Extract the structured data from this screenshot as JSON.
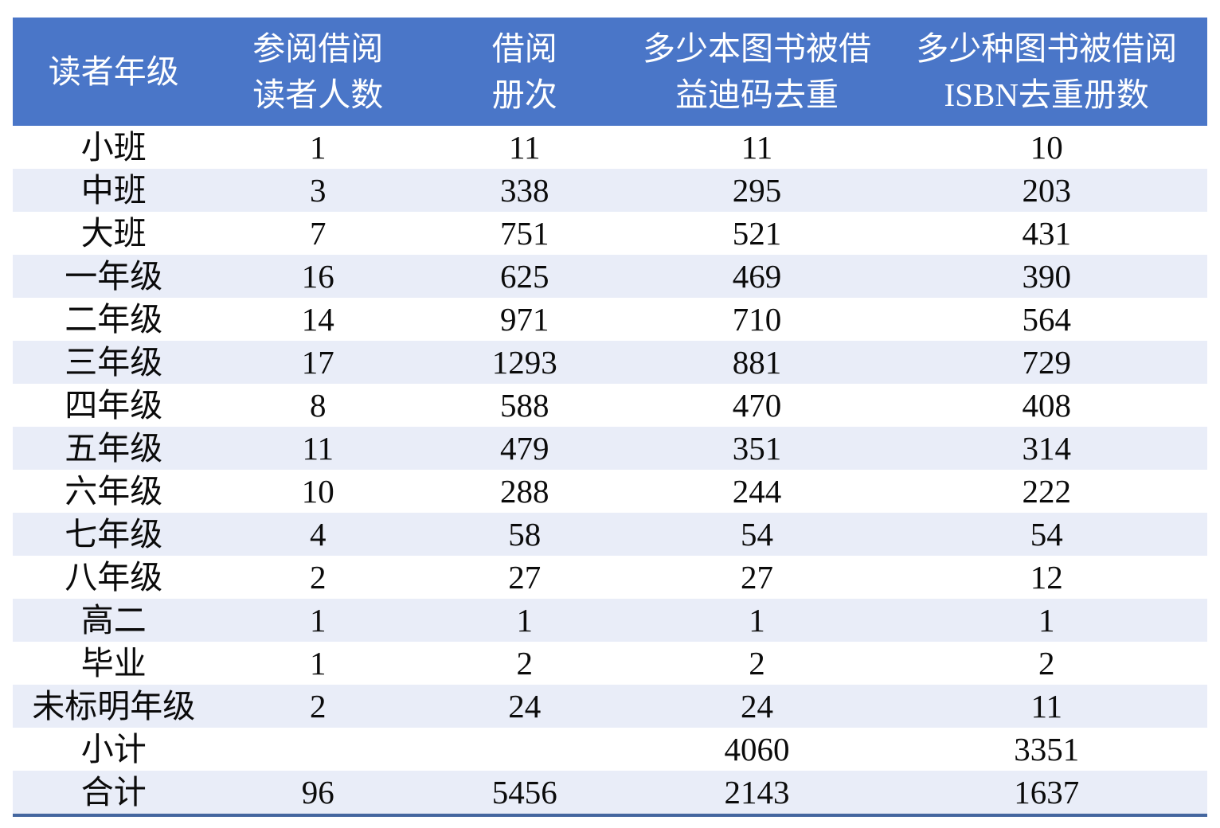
{
  "table": {
    "columns": [
      {
        "name": "reader-grade",
        "label_lines": [
          "读者年级"
        ]
      },
      {
        "name": "reader-count",
        "label_lines": [
          "参阅借阅",
          "读者人数"
        ]
      },
      {
        "name": "loan-volume-times",
        "label_lines": [
          "借阅",
          "册次"
        ]
      },
      {
        "name": "books-borrowed-barcode",
        "label_lines": [
          "多少本图书被借",
          "益迪码去重"
        ]
      },
      {
        "name": "titles-borrowed-isbn",
        "label_lines": [
          "多少种图书被借阅",
          "ISBN去重册数"
        ]
      }
    ],
    "rows": [
      {
        "grade": "小班",
        "values": [
          "1",
          "11",
          "11",
          "10"
        ]
      },
      {
        "grade": "中班",
        "values": [
          "3",
          "338",
          "295",
          "203"
        ]
      },
      {
        "grade": "大班",
        "values": [
          "7",
          "751",
          "521",
          "431"
        ]
      },
      {
        "grade": "一年级",
        "values": [
          "16",
          "625",
          "469",
          "390"
        ]
      },
      {
        "grade": "二年级",
        "values": [
          "14",
          "971",
          "710",
          "564"
        ]
      },
      {
        "grade": "三年级",
        "values": [
          "17",
          "1293",
          "881",
          "729"
        ]
      },
      {
        "grade": "四年级",
        "values": [
          "8",
          "588",
          "470",
          "408"
        ]
      },
      {
        "grade": "五年级",
        "values": [
          "11",
          "479",
          "351",
          "314"
        ]
      },
      {
        "grade": "六年级",
        "values": [
          "10",
          "288",
          "244",
          "222"
        ]
      },
      {
        "grade": "七年级",
        "values": [
          "4",
          "58",
          "54",
          "54"
        ]
      },
      {
        "grade": "八年级",
        "values": [
          "2",
          "27",
          "27",
          "12"
        ]
      },
      {
        "grade": "高二",
        "values": [
          "1",
          "1",
          "1",
          "1"
        ]
      },
      {
        "grade": "毕业",
        "values": [
          "1",
          "2",
          "2",
          "2"
        ]
      },
      {
        "grade": "未标明年级",
        "values": [
          "2",
          "24",
          "24",
          "11"
        ]
      },
      {
        "grade": "小计",
        "values": [
          "",
          "",
          "4060",
          "3351"
        ]
      },
      {
        "grade": "合计",
        "values": [
          "96",
          "5456",
          "2143",
          "1637"
        ]
      }
    ],
    "colors": {
      "header_bg": "#4a76c8",
      "header_text": "#ffffff",
      "band_bg": "#e9edf8",
      "bottom_rule": "#44669f",
      "body_text": "#0b0b0b"
    }
  },
  "chart_data": {
    "type": "table",
    "title": "",
    "columns": [
      "读者年级",
      "参阅借阅读者人数",
      "借阅册次",
      "多少本图书被借 益迪码去重",
      "多少种图书被借阅 ISBN去重册数"
    ],
    "rows": [
      [
        "小班",
        1,
        11,
        11,
        10
      ],
      [
        "中班",
        3,
        338,
        295,
        203
      ],
      [
        "大班",
        7,
        751,
        521,
        431
      ],
      [
        "一年级",
        16,
        625,
        469,
        390
      ],
      [
        "二年级",
        14,
        971,
        710,
        564
      ],
      [
        "三年级",
        17,
        1293,
        881,
        729
      ],
      [
        "四年级",
        8,
        588,
        470,
        408
      ],
      [
        "五年级",
        11,
        479,
        351,
        314
      ],
      [
        "六年级",
        10,
        288,
        244,
        222
      ],
      [
        "七年级",
        4,
        58,
        54,
        54
      ],
      [
        "八年级",
        2,
        27,
        27,
        12
      ],
      [
        "高二",
        1,
        1,
        1,
        1
      ],
      [
        "毕业",
        1,
        2,
        2,
        2
      ],
      [
        "未标明年级",
        2,
        24,
        24,
        11
      ],
      [
        "小计",
        null,
        null,
        4060,
        3351
      ],
      [
        "合计",
        96,
        5456,
        2143,
        1637
      ]
    ],
    "layout": {
      "banded_rows": true,
      "band_start_row_index": 1,
      "header_fill": "#4a76c8",
      "bottom_border": "#44669f"
    }
  }
}
